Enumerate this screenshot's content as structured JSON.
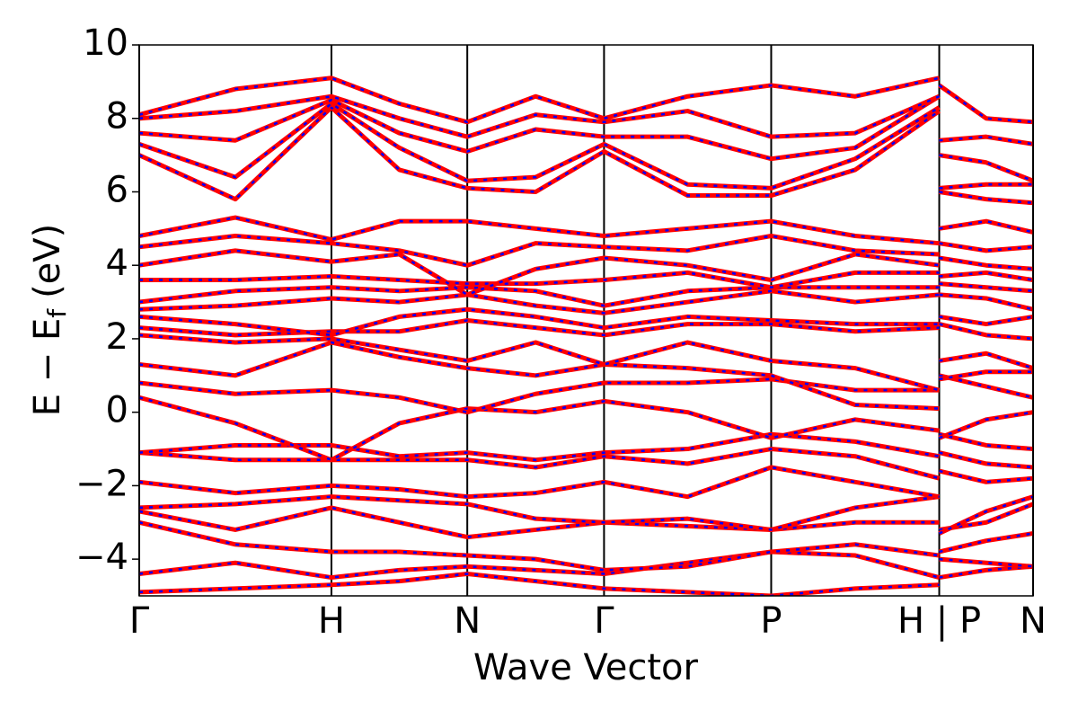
{
  "chart_data": {
    "type": "line",
    "xlabel": "Wave Vector",
    "ylabel": [
      "E − E",
      "f",
      "(eV)"
    ],
    "x": [
      0,
      0.1075,
      0.215,
      0.291,
      0.367,
      0.4435,
      0.52,
      0.6135,
      0.707,
      0.801,
      0.895,
      0.895,
      0.895,
      0.9475,
      1.0
    ],
    "xlim": [
      0,
      1.0
    ],
    "xticks": [
      {
        "value": 0,
        "label": "Γ"
      },
      {
        "value": 0.215,
        "label": "H"
      },
      {
        "value": 0.367,
        "label": "N"
      },
      {
        "value": 0.52,
        "label": "Γ"
      },
      {
        "value": 0.707,
        "label": "P"
      },
      {
        "value": 0.895,
        "label": "H | P"
      },
      {
        "value": 1.0,
        "label": "N"
      }
    ],
    "ylim": [
      -5,
      10
    ],
    "yticks": [
      {
        "value": -4,
        "label": "−4"
      },
      {
        "value": -2,
        "label": "−2"
      },
      0,
      2,
      4,
      6,
      8,
      10
    ],
    "grid": "x",
    "overlay_color": "#0000ff",
    "series": [
      {
        "color": "#ff0000",
        "values": [
          -4.9,
          -4.8,
          -4.7,
          -4.6,
          -4.4,
          -4.6,
          -4.8,
          -4.9,
          -5.0,
          -4.8,
          -4.7,
          null,
          -4.5,
          -4.3,
          -4.2
        ]
      },
      {
        "color": "#ff0000",
        "values": [
          -4.4,
          -4.1,
          -4.5,
          -4.3,
          -4.2,
          -4.3,
          -4.4,
          -4.1,
          -3.8,
          -3.9,
          -4.5,
          null,
          -4.0,
          -4.1,
          -4.2
        ]
      },
      {
        "color": "#ff0000",
        "values": [
          -3.0,
          -3.6,
          -3.8,
          -3.8,
          -3.9,
          -4.0,
          -4.3,
          -4.2,
          -3.8,
          -3.6,
          -3.9,
          null,
          -3.8,
          -3.5,
          -3.3
        ]
      },
      {
        "color": "#ff0000",
        "values": [
          -2.7,
          -3.2,
          -2.6,
          -3.0,
          -3.4,
          -3.2,
          -3.0,
          -3.1,
          -3.2,
          -3.0,
          -3.0,
          null,
          -3.2,
          -3.0,
          -2.5
        ]
      },
      {
        "color": "#ff0000",
        "values": [
          -2.6,
          -2.5,
          -2.3,
          -2.4,
          -2.5,
          -2.9,
          -3.0,
          -2.9,
          -3.2,
          -2.6,
          -2.3,
          null,
          -3.3,
          -2.7,
          -2.3
        ]
      },
      {
        "color": "#ff0000",
        "values": [
          -1.9,
          -2.2,
          -2.0,
          -2.1,
          -2.3,
          -2.2,
          -1.9,
          -2.3,
          -1.5,
          -1.9,
          -2.3,
          null,
          -1.6,
          -1.9,
          -1.8
        ]
      },
      {
        "color": "#ff0000",
        "values": [
          -1.1,
          -1.3,
          -1.3,
          -1.3,
          -1.3,
          -1.5,
          -1.2,
          -1.4,
          -1.0,
          -1.2,
          -1.8,
          null,
          -1.1,
          -1.4,
          -1.5
        ]
      },
      {
        "color": "#ff0000",
        "values": [
          -1.1,
          -0.9,
          -0.9,
          -1.2,
          -1.1,
          -1.3,
          -1.1,
          -1.0,
          -0.6,
          -0.8,
          -1.2,
          null,
          -0.6,
          -0.9,
          -1.0
        ]
      },
      {
        "color": "#ff0000",
        "values": [
          0.4,
          -0.3,
          -1.3,
          -0.3,
          0.1,
          0.0,
          0.3,
          0.0,
          -0.7,
          -0.2,
          -0.5,
          null,
          -0.7,
          -0.2,
          0.0
        ]
      },
      {
        "color": "#ff0000",
        "values": [
          0.8,
          0.5,
          0.6,
          0.4,
          0.0,
          0.5,
          0.8,
          0.8,
          0.9,
          0.6,
          0.6,
          null,
          1.0,
          0.7,
          0.4
        ]
      },
      {
        "color": "#ff0000",
        "values": [
          1.3,
          1.0,
          1.9,
          1.5,
          1.2,
          1.0,
          1.3,
          1.2,
          1.0,
          0.2,
          0.1,
          null,
          0.9,
          1.1,
          1.1
        ]
      },
      {
        "color": "#ff0000",
        "values": [
          2.1,
          1.9,
          2.0,
          1.7,
          1.4,
          1.9,
          1.3,
          1.9,
          1.4,
          1.2,
          0.6,
          null,
          1.4,
          1.6,
          1.2
        ]
      },
      {
        "color": "#ff0000",
        "values": [
          2.3,
          2.1,
          2.2,
          2.2,
          2.5,
          2.3,
          2.1,
          2.4,
          2.4,
          2.2,
          2.3,
          null,
          2.4,
          2.1,
          2.0
        ]
      },
      {
        "color": "#ff0000",
        "values": [
          2.6,
          2.4,
          2.1,
          2.6,
          2.8,
          2.6,
          2.3,
          2.6,
          2.5,
          2.4,
          2.4,
          null,
          2.6,
          2.4,
          2.6
        ]
      },
      {
        "color": "#ff0000",
        "values": [
          2.8,
          2.9,
          3.1,
          3.0,
          3.2,
          2.9,
          2.7,
          3.0,
          3.3,
          3.0,
          3.2,
          null,
          3.2,
          3.1,
          2.8
        ]
      },
      {
        "color": "#ff0000",
        "values": [
          3.0,
          3.3,
          3.4,
          3.3,
          3.4,
          3.3,
          2.9,
          3.3,
          3.4,
          3.4,
          3.4,
          null,
          3.5,
          3.4,
          3.3
        ]
      },
      {
        "color": "#ff0000",
        "values": [
          3.6,
          3.6,
          3.7,
          3.6,
          3.5,
          3.5,
          3.6,
          3.8,
          3.4,
          3.8,
          3.8,
          null,
          3.7,
          3.8,
          3.6
        ]
      },
      {
        "color": "#ff0000",
        "values": [
          4.0,
          4.4,
          4.1,
          4.3,
          3.2,
          3.9,
          4.2,
          4.0,
          3.6,
          4.3,
          4.0,
          null,
          4.2,
          4.0,
          3.9
        ]
      },
      {
        "color": "#ff0000",
        "values": [
          4.5,
          4.8,
          4.6,
          4.4,
          4.0,
          4.6,
          4.5,
          4.4,
          4.8,
          4.4,
          4.3,
          null,
          4.6,
          4.4,
          4.5
        ]
      },
      {
        "color": "#ff0000",
        "values": [
          4.8,
          5.3,
          4.7,
          5.2,
          5.2,
          5.0,
          4.8,
          5.0,
          5.2,
          4.8,
          4.6,
          null,
          5.0,
          5.2,
          4.9
        ]
      },
      {
        "color": "#ff0000",
        "values": [
          7.0,
          5.8,
          8.3,
          6.6,
          6.1,
          6.0,
          7.1,
          5.9,
          5.9,
          6.6,
          8.2,
          null,
          6.0,
          5.8,
          5.7
        ]
      },
      {
        "color": "#ff0000",
        "values": [
          7.3,
          6.4,
          8.4,
          7.2,
          6.3,
          6.4,
          7.3,
          6.2,
          6.1,
          6.9,
          8.3,
          null,
          6.1,
          6.2,
          6.2
        ]
      },
      {
        "color": "#ff0000",
        "values": [
          7.6,
          7.4,
          8.5,
          7.6,
          7.1,
          7.7,
          7.5,
          7.5,
          6.9,
          7.2,
          8.6,
          null,
          7.0,
          6.8,
          6.3
        ]
      },
      {
        "color": "#ff0000",
        "values": [
          8.0,
          8.2,
          8.6,
          8.0,
          7.5,
          8.1,
          7.9,
          8.2,
          7.5,
          7.6,
          8.6,
          null,
          7.4,
          7.5,
          7.3
        ]
      },
      {
        "color": "#ff0000",
        "values": [
          8.1,
          8.8,
          9.1,
          8.4,
          7.9,
          8.6,
          8.0,
          8.6,
          8.9,
          8.6,
          9.1,
          null,
          8.9,
          8.0,
          7.9
        ]
      }
    ]
  }
}
